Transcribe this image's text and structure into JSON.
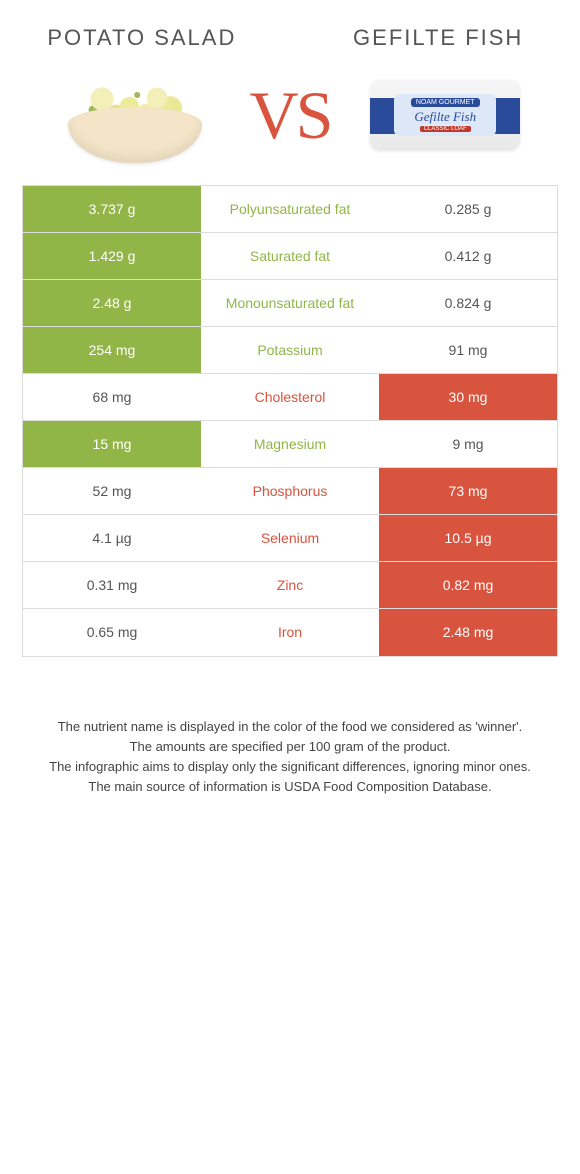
{
  "colors": {
    "food1_accent": "#92b548",
    "food2_accent": "#d8543e",
    "border": "#dcdcdc",
    "text": "#555555",
    "background": "#ffffff"
  },
  "typography": {
    "title_fontsize_pt": 17,
    "vs_fontsize_pt": 51,
    "cell_fontsize_pt": 11,
    "footer_fontsize_pt": 10
  },
  "header": {
    "food1_title": "Potato salad",
    "food2_title": "Gefilte fish",
    "vs_label": "VS"
  },
  "package_labels": {
    "brand": "NOAM GOURMET",
    "product": "Gefilte Fish",
    "subtitle": "CLASSIC LOAF"
  },
  "table": {
    "rows": [
      {
        "nutrient": "Polyunsaturated fat",
        "food1": "3.737 g",
        "food2": "0.285 g",
        "winner": "food1"
      },
      {
        "nutrient": "Saturated fat",
        "food1": "1.429 g",
        "food2": "0.412 g",
        "winner": "food1"
      },
      {
        "nutrient": "Monounsaturated fat",
        "food1": "2.48 g",
        "food2": "0.824 g",
        "winner": "food1"
      },
      {
        "nutrient": "Potassium",
        "food1": "254 mg",
        "food2": "91 mg",
        "winner": "food1"
      },
      {
        "nutrient": "Cholesterol",
        "food1": "68 mg",
        "food2": "30 mg",
        "winner": "food2"
      },
      {
        "nutrient": "Magnesium",
        "food1": "15 mg",
        "food2": "9 mg",
        "winner": "food1"
      },
      {
        "nutrient": "Phosphorus",
        "food1": "52 mg",
        "food2": "73 mg",
        "winner": "food2"
      },
      {
        "nutrient": "Selenium",
        "food1": "4.1 µg",
        "food2": "10.5 µg",
        "winner": "food2"
      },
      {
        "nutrient": "Zinc",
        "food1": "0.31 mg",
        "food2": "0.82 mg",
        "winner": "food2"
      },
      {
        "nutrient": "Iron",
        "food1": "0.65 mg",
        "food2": "2.48 mg",
        "winner": "food2"
      }
    ]
  },
  "footer": {
    "line1": "The nutrient name is displayed in the color of the food we considered as 'winner'.",
    "line2": "The amounts are specified per 100 gram of the product.",
    "line3": "The infographic aims to display only the significant differences, ignoring minor ones.",
    "line4": "The main source of information is USDA Food Composition Database."
  }
}
